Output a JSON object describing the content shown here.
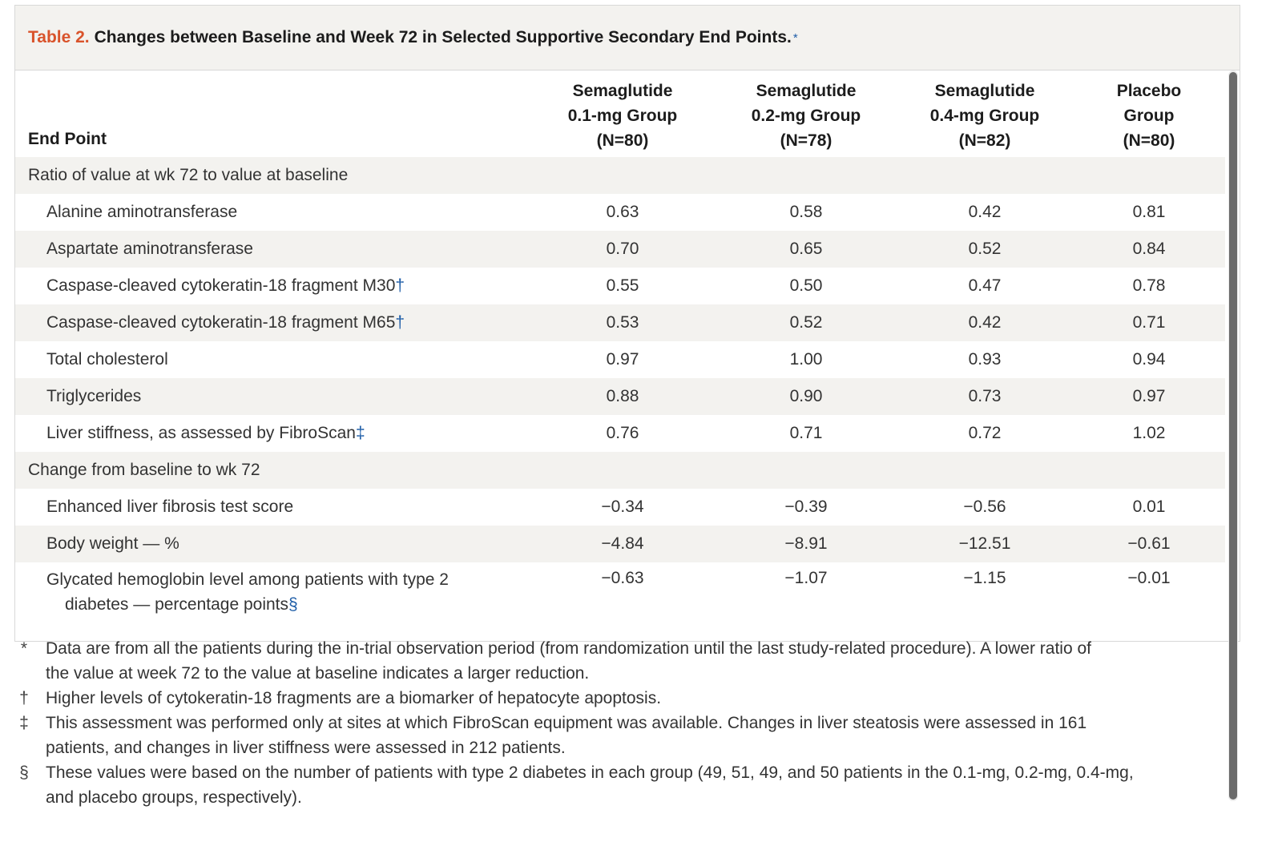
{
  "title": {
    "label": "Table 2.",
    "text": "Changes between Baseline and Week 72 in Selected Supportive Secondary End Points.",
    "mark": "*"
  },
  "columns": {
    "end_point": "End Point",
    "groups": [
      {
        "line1": "Semaglutide",
        "line2": "0.1-mg Group",
        "line3": "(N=80)"
      },
      {
        "line1": "Semaglutide",
        "line2": "0.2-mg Group",
        "line3": "(N=78)"
      },
      {
        "line1": "Semaglutide",
        "line2": "0.4-mg Group",
        "line3": "(N=82)"
      },
      {
        "line1": "Placebo",
        "line2": "Group",
        "line3": "(N=80)"
      }
    ]
  },
  "sections": [
    {
      "heading": "Ratio of value at wk 72 to value at baseline",
      "rows": [
        {
          "label": "Alanine aminotransferase",
          "mark": "",
          "values": [
            "0.63",
            "0.58",
            "0.42",
            "0.81"
          ]
        },
        {
          "label": "Aspartate aminotransferase",
          "mark": "",
          "values": [
            "0.70",
            "0.65",
            "0.52",
            "0.84"
          ]
        },
        {
          "label": "Caspase-cleaved cytokeratin-18 fragment M30",
          "mark": "†",
          "values": [
            "0.55",
            "0.50",
            "0.47",
            "0.78"
          ]
        },
        {
          "label": "Caspase-cleaved cytokeratin-18 fragment M65",
          "mark": "†",
          "values": [
            "0.53",
            "0.52",
            "0.42",
            "0.71"
          ]
        },
        {
          "label": "Total cholesterol",
          "mark": "",
          "values": [
            "0.97",
            "1.00",
            "0.93",
            "0.94"
          ]
        },
        {
          "label": "Triglycerides",
          "mark": "",
          "values": [
            "0.88",
            "0.90",
            "0.73",
            "0.97"
          ]
        },
        {
          "label": "Liver stiffness, as assessed by FibroScan",
          "mark": "‡",
          "values": [
            "0.76",
            "0.71",
            "0.72",
            "1.02"
          ]
        }
      ]
    },
    {
      "heading": "Change from baseline to wk 72",
      "rows": [
        {
          "label": "Enhanced liver fibrosis test score",
          "mark": "",
          "values": [
            "−0.34",
            "−0.39",
            "−0.56",
            "0.01"
          ]
        },
        {
          "label": "Body weight — %",
          "mark": "",
          "values": [
            "−4.84",
            "−8.91",
            "−12.51",
            "−0.61"
          ]
        },
        {
          "label": "Glycated hemoglobin level among patients with type 2",
          "label2": "diabetes — percentage points",
          "mark": "§",
          "values": [
            "−0.63",
            "−1.07",
            "−1.15",
            "−0.01"
          ]
        }
      ]
    }
  ],
  "footnotes": [
    {
      "symbol": "*",
      "lines": [
        "Data are from all the patients during the in-trial observation period (from randomization until the last study-related procedure). A lower ratio of",
        "the value at week 72 to the value at baseline indicates a larger reduction."
      ]
    },
    {
      "symbol": "†",
      "lines": [
        "Higher levels of cytokeratin-18 fragments are a biomarker of hepatocyte apoptosis."
      ]
    },
    {
      "symbol": "‡",
      "lines": [
        "This assessment was performed only at sites at which FibroScan equipment was available. Changes in liver steatosis were assessed in 161",
        "patients, and changes in liver stiffness were assessed in 212 patients."
      ]
    },
    {
      "symbol": "§",
      "lines": [
        "These values were based on the number of patients with type 2 diabetes in each group (49, 51, 49, and 50 patients in the 0.1-mg, 0.2-mg, 0.4-mg,",
        "and placebo groups, respectively)."
      ]
    }
  ]
}
